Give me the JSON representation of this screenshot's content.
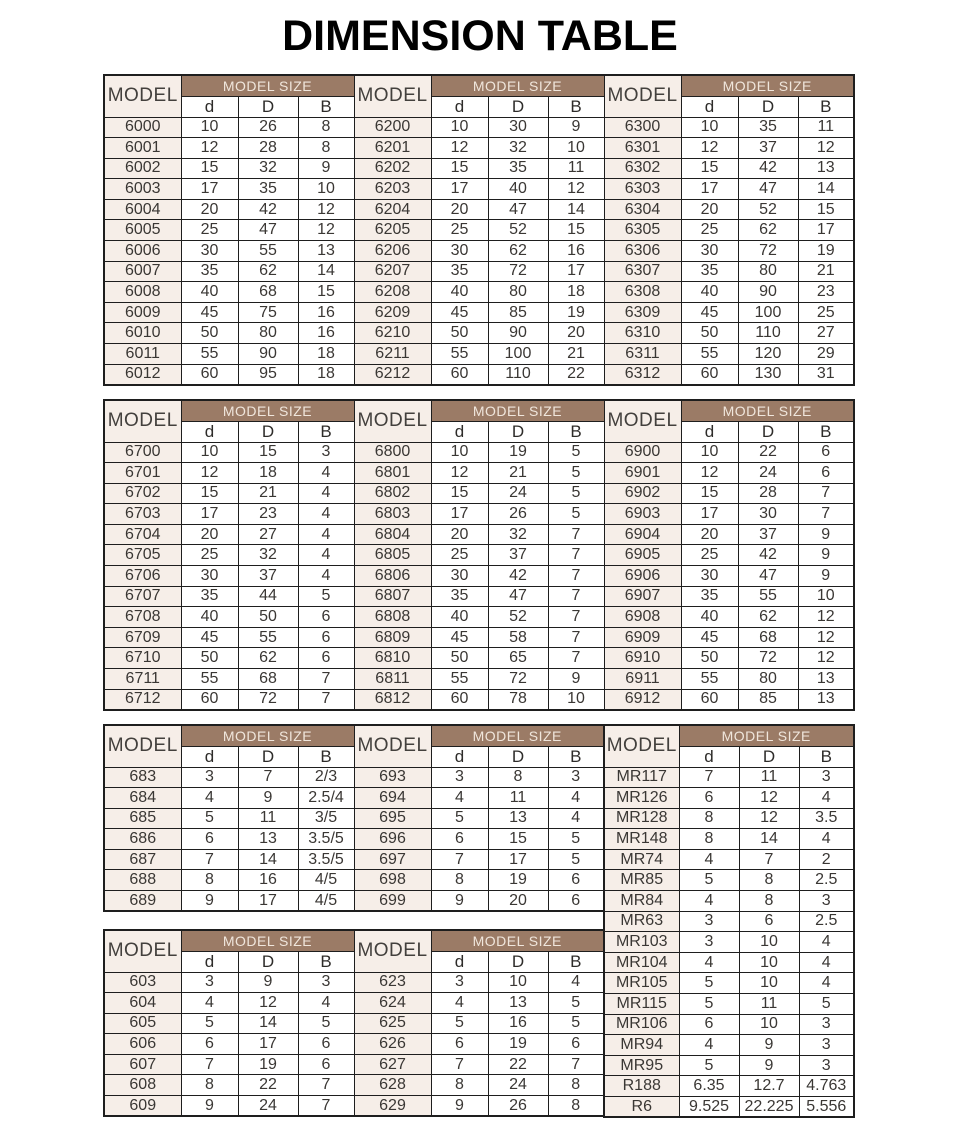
{
  "title": "DIMENSION TABLE",
  "labels": {
    "model": "MODEL",
    "model_size": "MODEL SIZE",
    "cols": [
      "d",
      "D",
      "B"
    ]
  },
  "colors": {
    "band_brown": "#9b7b66",
    "band_text": "#f0e6dc",
    "model_cell_bg": "#f6eee8",
    "border": "#1e1e1e",
    "text": "#3a3734"
  },
  "blocks": [
    {
      "name": "series-6000-6200-6300",
      "rows": [
        [
          "6000",
          "10",
          "26",
          "8",
          "6200",
          "10",
          "30",
          "9",
          "6300",
          "10",
          "35",
          "11"
        ],
        [
          "6001",
          "12",
          "28",
          "8",
          "6201",
          "12",
          "32",
          "10",
          "6301",
          "12",
          "37",
          "12"
        ],
        [
          "6002",
          "15",
          "32",
          "9",
          "6202",
          "15",
          "35",
          "11",
          "6302",
          "15",
          "42",
          "13"
        ],
        [
          "6003",
          "17",
          "35",
          "10",
          "6203",
          "17",
          "40",
          "12",
          "6303",
          "17",
          "47",
          "14"
        ],
        [
          "6004",
          "20",
          "42",
          "12",
          "6204",
          "20",
          "47",
          "14",
          "6304",
          "20",
          "52",
          "15"
        ],
        [
          "6005",
          "25",
          "47",
          "12",
          "6205",
          "25",
          "52",
          "15",
          "6305",
          "25",
          "62",
          "17"
        ],
        [
          "6006",
          "30",
          "55",
          "13",
          "6206",
          "30",
          "62",
          "16",
          "6306",
          "30",
          "72",
          "19"
        ],
        [
          "6007",
          "35",
          "62",
          "14",
          "6207",
          "35",
          "72",
          "17",
          "6307",
          "35",
          "80",
          "21"
        ],
        [
          "6008",
          "40",
          "68",
          "15",
          "6208",
          "40",
          "80",
          "18",
          "6308",
          "40",
          "90",
          "23"
        ],
        [
          "6009",
          "45",
          "75",
          "16",
          "6209",
          "45",
          "85",
          "19",
          "6309",
          "45",
          "100",
          "25"
        ],
        [
          "6010",
          "50",
          "80",
          "16",
          "6210",
          "50",
          "90",
          "20",
          "6310",
          "50",
          "110",
          "27"
        ],
        [
          "6011",
          "55",
          "90",
          "18",
          "6211",
          "55",
          "100",
          "21",
          "6311",
          "55",
          "120",
          "29"
        ],
        [
          "6012",
          "60",
          "95",
          "18",
          "6212",
          "60",
          "110",
          "22",
          "6312",
          "60",
          "130",
          "31"
        ]
      ]
    },
    {
      "name": "series-6700-6800-6900",
      "rows": [
        [
          "6700",
          "10",
          "15",
          "3",
          "6800",
          "10",
          "19",
          "5",
          "6900",
          "10",
          "22",
          "6"
        ],
        [
          "6701",
          "12",
          "18",
          "4",
          "6801",
          "12",
          "21",
          "5",
          "6901",
          "12",
          "24",
          "6"
        ],
        [
          "6702",
          "15",
          "21",
          "4",
          "6802",
          "15",
          "24",
          "5",
          "6902",
          "15",
          "28",
          "7"
        ],
        [
          "6703",
          "17",
          "23",
          "4",
          "6803",
          "17",
          "26",
          "5",
          "6903",
          "17",
          "30",
          "7"
        ],
        [
          "6704",
          "20",
          "27",
          "4",
          "6804",
          "20",
          "32",
          "7",
          "6904",
          "20",
          "37",
          "9"
        ],
        [
          "6705",
          "25",
          "32",
          "4",
          "6805",
          "25",
          "37",
          "7",
          "6905",
          "25",
          "42",
          "9"
        ],
        [
          "6706",
          "30",
          "37",
          "4",
          "6806",
          "30",
          "42",
          "7",
          "6906",
          "30",
          "47",
          "9"
        ],
        [
          "6707",
          "35",
          "44",
          "5",
          "6807",
          "35",
          "47",
          "7",
          "6907",
          "35",
          "55",
          "10"
        ],
        [
          "6708",
          "40",
          "50",
          "6",
          "6808",
          "40",
          "52",
          "7",
          "6908",
          "40",
          "62",
          "12"
        ],
        [
          "6709",
          "45",
          "55",
          "6",
          "6809",
          "45",
          "58",
          "7",
          "6909",
          "45",
          "68",
          "12"
        ],
        [
          "6710",
          "50",
          "62",
          "6",
          "6810",
          "50",
          "65",
          "7",
          "6910",
          "50",
          "72",
          "12"
        ],
        [
          "6711",
          "55",
          "68",
          "7",
          "6811",
          "55",
          "72",
          "9",
          "6911",
          "55",
          "80",
          "13"
        ],
        [
          "6712",
          "60",
          "72",
          "7",
          "6812",
          "60",
          "78",
          "10",
          "6912",
          "60",
          "85",
          "13"
        ]
      ]
    },
    {
      "name": "series-683-693",
      "rows": [
        [
          "683",
          "3",
          "7",
          "2/3",
          "693",
          "3",
          "8",
          "3"
        ],
        [
          "684",
          "4",
          "9",
          "2.5/4",
          "694",
          "4",
          "11",
          "4"
        ],
        [
          "685",
          "5",
          "11",
          "3/5",
          "695",
          "5",
          "13",
          "4"
        ],
        [
          "686",
          "6",
          "13",
          "3.5/5",
          "696",
          "6",
          "15",
          "5"
        ],
        [
          "687",
          "7",
          "14",
          "3.5/5",
          "697",
          "7",
          "17",
          "5"
        ],
        [
          "688",
          "8",
          "16",
          "4/5",
          "698",
          "8",
          "19",
          "6"
        ],
        [
          "689",
          "9",
          "17",
          "4/5",
          "699",
          "9",
          "20",
          "6"
        ]
      ]
    },
    {
      "name": "series-603-623",
      "rows": [
        [
          "603",
          "3",
          "9",
          "3",
          "623",
          "3",
          "10",
          "4"
        ],
        [
          "604",
          "4",
          "12",
          "4",
          "624",
          "4",
          "13",
          "5"
        ],
        [
          "605",
          "5",
          "14",
          "5",
          "625",
          "5",
          "16",
          "5"
        ],
        [
          "606",
          "6",
          "17",
          "6",
          "626",
          "6",
          "19",
          "6"
        ],
        [
          "607",
          "7",
          "19",
          "6",
          "627",
          "7",
          "22",
          "7"
        ],
        [
          "608",
          "8",
          "22",
          "7",
          "628",
          "8",
          "24",
          "8"
        ],
        [
          "609",
          "9",
          "24",
          "7",
          "629",
          "9",
          "26",
          "8"
        ]
      ]
    },
    {
      "name": "series-mr",
      "rows": [
        [
          "MR117",
          "7",
          "11",
          "3"
        ],
        [
          "MR126",
          "6",
          "12",
          "4"
        ],
        [
          "MR128",
          "8",
          "12",
          "3.5"
        ],
        [
          "MR148",
          "8",
          "14",
          "4"
        ],
        [
          "MR74",
          "4",
          "7",
          "2"
        ],
        [
          "MR85",
          "5",
          "8",
          "2.5"
        ],
        [
          "MR84",
          "4",
          "8",
          "3"
        ],
        [
          "MR63",
          "3",
          "6",
          "2.5"
        ],
        [
          "MR103",
          "3",
          "10",
          "4"
        ],
        [
          "MR104",
          "4",
          "10",
          "4"
        ],
        [
          "MR105",
          "5",
          "10",
          "4"
        ],
        [
          "MR115",
          "5",
          "11",
          "5"
        ],
        [
          "MR106",
          "6",
          "10",
          "3"
        ],
        [
          "MR94",
          "4",
          "9",
          "3"
        ],
        [
          "MR95",
          "5",
          "9",
          "3"
        ],
        [
          "R188",
          "6.35",
          "12.7",
          "4.763"
        ],
        [
          "R6",
          "9.525",
          "22.225",
          "5.556"
        ]
      ]
    }
  ]
}
